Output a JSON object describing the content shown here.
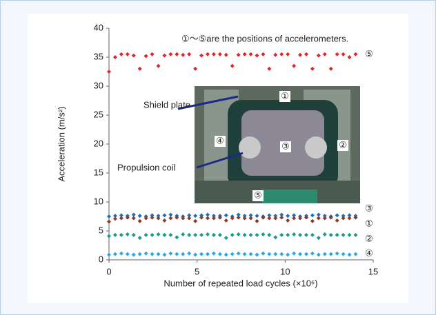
{
  "chart_data": {
    "type": "scatter",
    "ylabel": "Acceleration (m/s²)",
    "xlabel": "Number of repeated load cycles (×10⁶)",
    "xlim": [
      0,
      15
    ],
    "xticks": [
      0,
      5,
      10,
      15
    ],
    "ylim": [
      0,
      40
    ],
    "yticks": [
      0,
      5,
      10,
      15,
      20,
      25,
      30,
      35,
      40
    ],
    "annotations": [
      "①～⑤are the positions of accelerometers.",
      "Shield plate",
      "Propulsion coil"
    ],
    "inset_labels": [
      "①",
      "②",
      "③",
      "④",
      "⑤"
    ],
    "x": [
      0,
      0.35,
      0.7,
      1.05,
      1.4,
      1.75,
      2.1,
      2.45,
      2.8,
      3.15,
      3.5,
      3.85,
      4.2,
      4.55,
      4.9,
      5.25,
      5.6,
      5.95,
      6.3,
      6.65,
      7,
      7.35,
      7.7,
      8.05,
      8.4,
      8.75,
      9.1,
      9.45,
      9.8,
      10.15,
      10.5,
      10.85,
      11.2,
      11.55,
      11.9,
      12.25,
      12.6,
      12.95,
      13.3,
      13.65,
      14
    ],
    "series": [
      {
        "name": "⑤",
        "color": "#e0262a",
        "values": [
          32.5,
          35,
          35.5,
          35.5,
          35.3,
          33,
          35.2,
          35.5,
          33.5,
          35.3,
          35.5,
          35.5,
          35.4,
          35.5,
          33,
          35.3,
          35.5,
          35.5,
          35.5,
          35.4,
          33.5,
          35.4,
          35.5,
          35.5,
          35.3,
          35.5,
          33,
          35.4,
          35.5,
          35.5,
          33.5,
          35.4,
          35.5,
          33,
          35.3,
          35.5,
          33,
          35.5,
          35.5,
          35,
          35.5
        ]
      },
      {
        "name": "③",
        "color": "#1f6fb5",
        "values": [
          7.5,
          7.6,
          7.7,
          7.6,
          7.8,
          7.6,
          7.5,
          7.7,
          7.6,
          7.7,
          7.8,
          7.6,
          7.5,
          7.7,
          7.6,
          7.7,
          7.8,
          7.6,
          7.6,
          7.7,
          7.5,
          7.8,
          7.6,
          7.7,
          7.6,
          7.5,
          7.7,
          7.6,
          7.8,
          7.6,
          7.7,
          7.5,
          7.6,
          7.7,
          7.8,
          7.6,
          7.5,
          7.7,
          7.6,
          7.7,
          7.6
        ]
      },
      {
        "name": "①",
        "color": "#8b3a2a",
        "values": [
          6.6,
          7.1,
          7.2,
          7.3,
          7.2,
          6.7,
          7.2,
          7.3,
          7.2,
          6.8,
          7.2,
          7.3,
          7.2,
          7.2,
          6.7,
          7.3,
          7.2,
          7.2,
          7.3,
          6.8,
          7.2,
          7.3,
          7.2,
          7.2,
          6.7,
          7.3,
          7.2,
          7.2,
          7.3,
          6.8,
          7.2,
          7.2,
          7.3,
          6.7,
          7.2,
          7.2,
          7.3,
          6.8,
          7.2,
          7.2,
          7.3
        ]
      },
      {
        "name": "②",
        "color": "#1a9a8a",
        "values": [
          4.1,
          4.3,
          4.3,
          4.4,
          4.3,
          3.8,
          4.3,
          4.3,
          4.4,
          4.3,
          4.3,
          3.9,
          4.4,
          4.3,
          4.3,
          4.3,
          4.4,
          4.3,
          4.3,
          3.8,
          4.3,
          4.4,
          4.3,
          4.3,
          4.3,
          4.4,
          4.3,
          3.9,
          4.3,
          4.3,
          4.4,
          4.3,
          4.3,
          4.3,
          3.8,
          4.4,
          4.3,
          4.3,
          4.3,
          4.3,
          4.3
        ]
      },
      {
        "name": "④",
        "color": "#29a8e0",
        "values": [
          0.9,
          1,
          1.1,
          1,
          0.9,
          1,
          1.1,
          1,
          1,
          0.9,
          1.1,
          1,
          1,
          1.1,
          0.9,
          1,
          1,
          1.1,
          1,
          0.9,
          1,
          1.1,
          1,
          1,
          0.9,
          1.1,
          1,
          1,
          1,
          0.9,
          1.1,
          1,
          1,
          1.1,
          0.9,
          1,
          1,
          1.1,
          1,
          0.9,
          1
        ]
      }
    ]
  }
}
